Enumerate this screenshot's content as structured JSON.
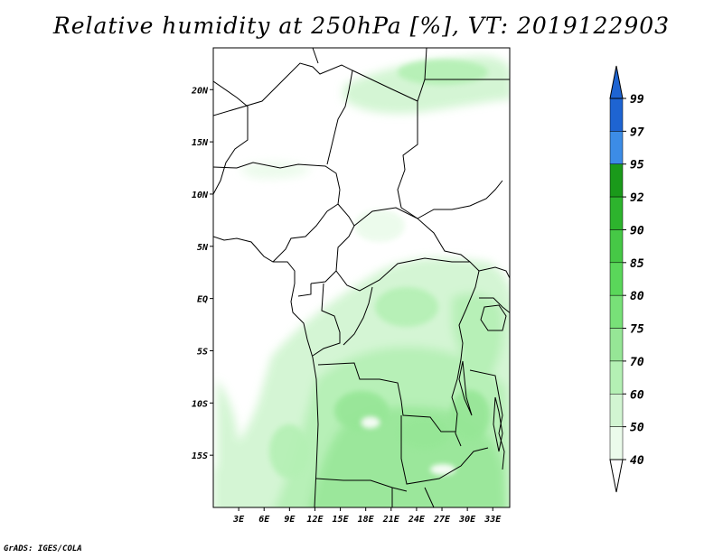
{
  "title": "Relative humidity at 250hPa [%], VT: 2019122903",
  "credit": "GrADS: IGES/COLA",
  "map": {
    "lon_range": [
      0,
      35
    ],
    "lat_range": [
      -20,
      24
    ],
    "lat_ticks": [
      {
        "label": "20N",
        "lat": 20
      },
      {
        "label": "15N",
        "lat": 15
      },
      {
        "label": "10N",
        "lat": 10
      },
      {
        "label": "5N",
        "lat": 5
      },
      {
        "label": "EQ",
        "lat": 0
      },
      {
        "label": "5S",
        "lat": -5
      },
      {
        "label": "10S",
        "lat": -10
      },
      {
        "label": "15S",
        "lat": -15
      }
    ],
    "lon_ticks": [
      {
        "label": "3E",
        "lon": 3
      },
      {
        "label": "6E",
        "lon": 6
      },
      {
        "label": "9E",
        "lon": 9
      },
      {
        "label": "12E",
        "lon": 12
      },
      {
        "label": "15E",
        "lon": 15
      },
      {
        "label": "18E",
        "lon": 18
      },
      {
        "label": "21E",
        "lon": 21
      },
      {
        "label": "24E",
        "lon": 24
      },
      {
        "label": "27E",
        "lon": 27
      },
      {
        "label": "30E",
        "lon": 30
      },
      {
        "label": "33E",
        "lon": 33
      }
    ]
  },
  "colorbar": {
    "levels": [
      "99",
      "97",
      "95",
      "92",
      "90",
      "85",
      "80",
      "75",
      "70",
      "60",
      "50",
      "40"
    ],
    "colors": [
      "#1e64d2",
      "#3c8ce6",
      "#1a9a1a",
      "#2db42d",
      "#46c846",
      "#5ad75a",
      "#78e178",
      "#96e696",
      "#b4f0b4",
      "#d2f5d2",
      "#ebfbeb"
    ],
    "top_arrow_color": "#1e64d2",
    "bottom_arrow_color": "#ffffff"
  }
}
